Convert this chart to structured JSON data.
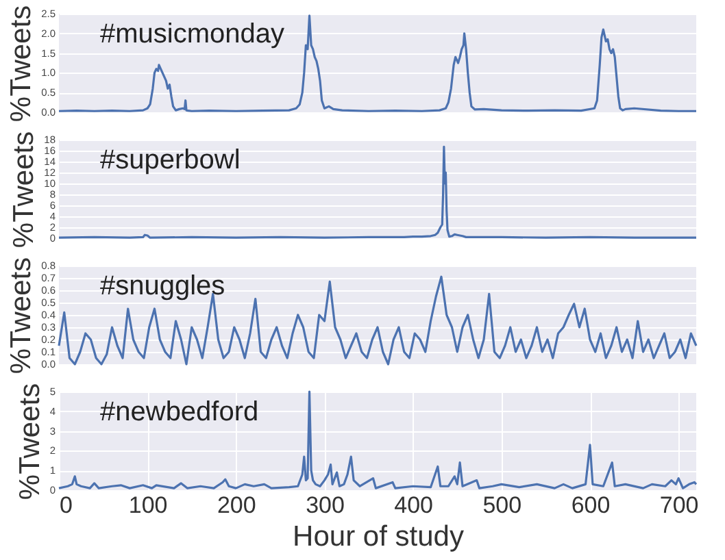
{
  "chart_data": [
    {
      "type": "line",
      "ylabel": "%Tweets",
      "annotations": [
        "#musicmonday"
      ],
      "xlim": [
        0,
        720
      ],
      "ylim": [
        0,
        2.5
      ],
      "yticks": [
        {
          "value": 0,
          "label": "0.0"
        },
        0.5,
        {
          "value": 1,
          "label": "1.0"
        },
        1.5,
        {
          "value": 2,
          "label": "2.0"
        },
        2.5
      ],
      "grid": "y",
      "tick_labels": "y",
      "series": [
        {
          "color": "#4c72b0",
          "x": [
            0,
            20,
            40,
            60,
            80,
            95,
            100,
            103,
            106,
            108,
            110,
            112,
            113,
            115,
            117,
            119,
            121,
            123,
            125,
            127,
            129,
            132,
            136,
            140,
            142,
            143,
            144,
            146,
            150,
            170,
            200,
            230,
            260,
            268,
            272,
            275,
            277,
            279,
            281,
            283,
            285,
            287,
            289,
            291,
            293,
            295,
            297,
            300,
            305,
            310,
            320,
            350,
            380,
            410,
            430,
            437,
            440,
            443,
            446,
            448,
            450,
            451,
            453,
            455,
            457,
            458,
            460,
            462,
            464,
            466,
            470,
            480,
            500,
            530,
            560,
            590,
            605,
            608,
            611,
            613,
            615,
            617,
            618,
            620,
            622,
            624,
            626,
            628,
            630,
            632,
            634,
            637,
            640,
            650,
            680,
            700,
            720
          ],
          "values": [
            0.03,
            0.04,
            0.03,
            0.04,
            0.03,
            0.05,
            0.1,
            0.2,
            0.6,
            1.0,
            1.1,
            1.05,
            1.2,
            1.1,
            1.0,
            0.9,
            0.8,
            0.6,
            0.7,
            0.4,
            0.15,
            0.05,
            0.08,
            0.1,
            0.08,
            0.3,
            0.05,
            0.04,
            0.03,
            0.04,
            0.03,
            0.04,
            0.05,
            0.1,
            0.2,
            0.5,
            1.0,
            1.7,
            1.6,
            2.45,
            1.7,
            1.6,
            1.4,
            1.3,
            1.1,
            0.8,
            0.3,
            0.1,
            0.15,
            0.08,
            0.05,
            0.03,
            0.04,
            0.03,
            0.05,
            0.1,
            0.25,
            0.6,
            1.2,
            1.4,
            1.3,
            1.25,
            1.4,
            1.6,
            1.7,
            2.0,
            1.6,
            1.0,
            0.5,
            0.15,
            0.07,
            0.08,
            0.05,
            0.04,
            0.05,
            0.04,
            0.1,
            0.3,
            1.2,
            1.9,
            2.1,
            1.9,
            1.8,
            1.85,
            1.6,
            1.5,
            1.6,
            1.4,
            0.9,
            0.4,
            0.1,
            0.05,
            0.08,
            0.1,
            0.04,
            0.03,
            0.03
          ]
        }
      ]
    },
    {
      "type": "line",
      "ylabel": "%Tweets",
      "annotations": [
        "#superbowl"
      ],
      "xlim": [
        0,
        720
      ],
      "ylim": [
        0,
        18
      ],
      "yticks": [
        0,
        2,
        4,
        6,
        8,
        10,
        12,
        14,
        16,
        18
      ],
      "grid": "y",
      "tick_labels": "y",
      "series": [
        {
          "color": "#4c72b0",
          "x": [
            0,
            40,
            80,
            95,
            97,
            100,
            103,
            150,
            200,
            250,
            300,
            350,
            390,
            400,
            410,
            420,
            425,
            428,
            431,
            433,
            434,
            435,
            436,
            437,
            438,
            439,
            441,
            444,
            447,
            450,
            453,
            456,
            460,
            500,
            550,
            600,
            650,
            720
          ],
          "values": [
            0.1,
            0.2,
            0.1,
            0.2,
            0.6,
            0.5,
            0.1,
            0.2,
            0.1,
            0.2,
            0.1,
            0.2,
            0.2,
            0.3,
            0.3,
            0.4,
            0.6,
            1.0,
            2.0,
            2.5,
            8,
            16.7,
            10,
            12,
            5,
            1.5,
            0.3,
            0.4,
            0.7,
            0.6,
            0.5,
            0.4,
            0.2,
            0.2,
            0.1,
            0.2,
            0.1,
            0.1
          ]
        }
      ]
    },
    {
      "type": "line",
      "ylabel": "%Tweets",
      "annotations": [
        "#snuggles"
      ],
      "xlim": [
        0,
        720
      ],
      "ylim": [
        0,
        0.8
      ],
      "yticks": [
        {
          "value": 0,
          "label": "0.0"
        },
        0.1,
        0.2,
        0.3,
        0.4,
        0.5,
        0.6,
        0.7,
        0.8
      ],
      "grid": "y",
      "tick_labels": "y",
      "series": [
        {
          "color": "#4c72b0",
          "x": [
            0,
            6,
            12,
            18,
            24,
            30,
            36,
            42,
            48,
            54,
            60,
            66,
            72,
            78,
            84,
            90,
            96,
            102,
            108,
            114,
            120,
            126,
            132,
            138,
            144,
            150,
            156,
            162,
            168,
            174,
            180,
            186,
            192,
            198,
            204,
            210,
            216,
            222,
            228,
            234,
            240,
            246,
            252,
            258,
            264,
            270,
            276,
            282,
            288,
            294,
            300,
            306,
            312,
            318,
            324,
            330,
            336,
            342,
            348,
            354,
            360,
            366,
            372,
            378,
            384,
            390,
            396,
            402,
            408,
            414,
            420,
            426,
            432,
            438,
            444,
            450,
            456,
            462,
            468,
            474,
            480,
            486,
            492,
            498,
            504,
            510,
            516,
            522,
            528,
            534,
            540,
            546,
            552,
            558,
            564,
            570,
            576,
            582,
            588,
            594,
            600,
            606,
            612,
            618,
            624,
            630,
            636,
            642,
            648,
            654,
            660,
            666,
            672,
            678,
            684,
            690,
            696,
            702,
            708,
            714,
            720
          ],
          "values": [
            0.15,
            0.42,
            0.05,
            0.0,
            0.1,
            0.25,
            0.2,
            0.05,
            0.0,
            0.08,
            0.3,
            0.15,
            0.05,
            0.45,
            0.2,
            0.1,
            0.05,
            0.3,
            0.45,
            0.2,
            0.1,
            0.05,
            0.35,
            0.2,
            0.0,
            0.3,
            0.2,
            0.05,
            0.3,
            0.57,
            0.2,
            0.05,
            0.1,
            0.3,
            0.2,
            0.05,
            0.25,
            0.53,
            0.1,
            0.05,
            0.2,
            0.3,
            0.15,
            0.05,
            0.25,
            0.4,
            0.3,
            0.1,
            0.05,
            0.4,
            0.35,
            0.67,
            0.3,
            0.2,
            0.05,
            0.15,
            0.25,
            0.1,
            0.05,
            0.2,
            0.3,
            0.1,
            0.0,
            0.2,
            0.3,
            0.1,
            0.05,
            0.25,
            0.2,
            0.1,
            0.35,
            0.55,
            0.71,
            0.4,
            0.3,
            0.1,
            0.3,
            0.4,
            0.2,
            0.05,
            0.2,
            0.57,
            0.1,
            0.05,
            0.15,
            0.3,
            0.1,
            0.2,
            0.05,
            0.15,
            0.3,
            0.1,
            0.2,
            0.05,
            0.25,
            0.3,
            0.4,
            0.49,
            0.3,
            0.45,
            0.2,
            0.1,
            0.25,
            0.05,
            0.15,
            0.3,
            0.1,
            0.2,
            0.05,
            0.35,
            0.1,
            0.2,
            0.05,
            0.15,
            0.25,
            0.05,
            0.1,
            0.2,
            0.05,
            0.25,
            0.15
          ]
        }
      ]
    },
    {
      "type": "line",
      "xlabel": "Hour of study",
      "ylabel": "%Tweets",
      "annotations": [
        "#newbedford"
      ],
      "xlim": [
        0,
        720
      ],
      "xticks": [
        0,
        100,
        200,
        300,
        400,
        500,
        600,
        700
      ],
      "ylim": [
        0,
        5
      ],
      "yticks": [
        0,
        1,
        2,
        3,
        4,
        5
      ],
      "grid": true,
      "series": [
        {
          "color": "#4c72b0",
          "x": [
            0,
            10,
            15,
            18,
            20,
            25,
            35,
            40,
            45,
            60,
            70,
            80,
            95,
            105,
            110,
            130,
            138,
            145,
            160,
            175,
            185,
            188,
            192,
            200,
            210,
            220,
            232,
            240,
            260,
            270,
            275,
            277,
            279,
            281,
            283,
            285,
            287,
            290,
            295,
            300,
            304,
            307,
            309,
            314,
            317,
            322,
            326,
            330,
            333,
            340,
            355,
            358,
            377,
            380,
            400,
            420,
            428,
            431,
            440,
            447,
            450,
            453,
            456,
            472,
            475,
            490,
            500,
            520,
            540,
            560,
            570,
            580,
            595,
            600,
            603,
            615,
            625,
            628,
            640,
            660,
            670,
            685,
            692,
            697,
            700,
            705,
            712,
            718,
            720
          ],
          "values": [
            0.1,
            0.2,
            0.3,
            0.7,
            0.3,
            0.2,
            0.1,
            0.35,
            0.1,
            0.2,
            0.25,
            0.1,
            0.25,
            0.1,
            0.25,
            0.1,
            0.35,
            0.1,
            0.2,
            0.1,
            0.4,
            0.55,
            0.2,
            0.1,
            0.3,
            0.2,
            0.3,
            0.1,
            0.15,
            0.2,
            0.8,
            1.7,
            0.5,
            0.6,
            5.0,
            1.0,
            0.5,
            0.3,
            0.2,
            0.5,
            0.8,
            1.3,
            0.3,
            0.9,
            0.2,
            0.3,
            0.8,
            1.7,
            0.5,
            0.2,
            0.6,
            0.1,
            0.4,
            0.1,
            0.2,
            0.15,
            1.2,
            0.2,
            0.2,
            0.7,
            0.3,
            1.4,
            0.2,
            0.5,
            0.1,
            0.2,
            0.3,
            0.15,
            0.3,
            0.1,
            0.3,
            0.1,
            0.3,
            2.3,
            0.3,
            0.2,
            1.4,
            0.2,
            0.3,
            0.1,
            0.3,
            0.2,
            0.5,
            0.3,
            0.6,
            0.1,
            0.3,
            0.4,
            0.3
          ]
        }
      ]
    }
  ]
}
